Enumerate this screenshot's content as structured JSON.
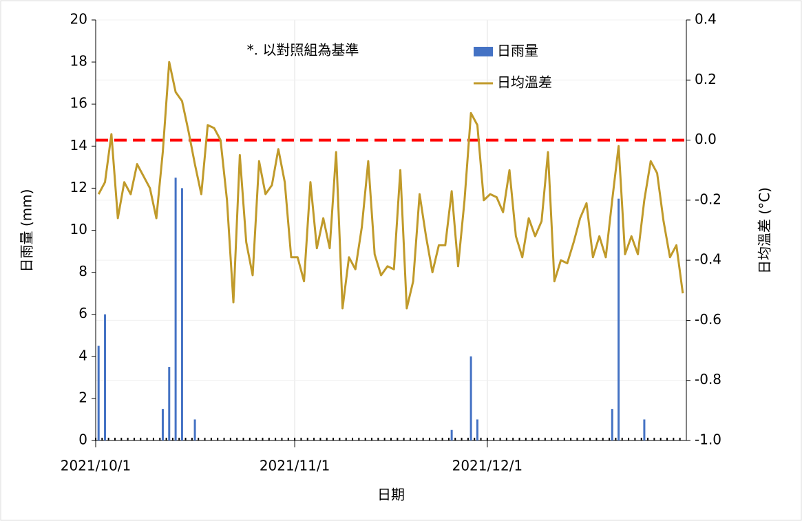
{
  "chart_data": {
    "type": "bar+line",
    "annotation": "*. 以對照組為基準",
    "x_label": "日期",
    "y_label": "日雨量 (mm)",
    "y2_label": "日均溫差 (°C)",
    "x": [
      "2021/10/1",
      "2021/10/2",
      "2021/10/3",
      "2021/10/4",
      "2021/10/5",
      "2021/10/6",
      "2021/10/7",
      "2021/10/8",
      "2021/10/9",
      "2021/10/10",
      "2021/10/11",
      "2021/10/12",
      "2021/10/13",
      "2021/10/14",
      "2021/10/15",
      "2021/10/16",
      "2021/10/17",
      "2021/10/18",
      "2021/10/19",
      "2021/10/20",
      "2021/10/21",
      "2021/10/22",
      "2021/10/23",
      "2021/10/24",
      "2021/10/25",
      "2021/10/26",
      "2021/10/27",
      "2021/10/28",
      "2021/10/29",
      "2021/10/30",
      "2021/10/31",
      "2021/11/1",
      "2021/11/2",
      "2021/11/3",
      "2021/11/4",
      "2021/11/5",
      "2021/11/6",
      "2021/11/7",
      "2021/11/8",
      "2021/11/9",
      "2021/11/10",
      "2021/11/11",
      "2021/11/12",
      "2021/11/13",
      "2021/11/14",
      "2021/11/15",
      "2021/11/16",
      "2021/11/17",
      "2021/11/18",
      "2021/11/19",
      "2021/11/20",
      "2021/11/21",
      "2021/11/22",
      "2021/11/23",
      "2021/11/24",
      "2021/11/25",
      "2021/11/26",
      "2021/11/27",
      "2021/11/28",
      "2021/11/29",
      "2021/11/30",
      "2021/12/1",
      "2021/12/2",
      "2021/12/3",
      "2021/12/4",
      "2021/12/5",
      "2021/12/6",
      "2021/12/7",
      "2021/12/8",
      "2021/12/9",
      "2021/12/10",
      "2021/12/11",
      "2021/12/12",
      "2021/12/13",
      "2021/12/14",
      "2021/12/15",
      "2021/12/16",
      "2021/12/17",
      "2021/12/18",
      "2021/12/19",
      "2021/12/20",
      "2021/12/21",
      "2021/12/22",
      "2021/12/23",
      "2021/12/24",
      "2021/12/25",
      "2021/12/26",
      "2021/12/27",
      "2021/12/28",
      "2021/12/29",
      "2021/12/30",
      "2021/12/31"
    ],
    "series": [
      {
        "name": "日雨量",
        "type": "bar",
        "axis": "y",
        "color": "#4472c4",
        "values": [
          4.5,
          6,
          0,
          0,
          0,
          0,
          0,
          0,
          0,
          0,
          1.5,
          3.5,
          12.5,
          12,
          0,
          1,
          0,
          0,
          0,
          0,
          0,
          0,
          0,
          0,
          0,
          0,
          0,
          0,
          0,
          0,
          0,
          0,
          0,
          0,
          0,
          0,
          0,
          0,
          0,
          0,
          0,
          0,
          0,
          0,
          0,
          0,
          0,
          0,
          0,
          0,
          0,
          0,
          0,
          0,
          0,
          0.5,
          0,
          0,
          4,
          1,
          0,
          0,
          0,
          0,
          0,
          0,
          0,
          0,
          0,
          0,
          0,
          0,
          0,
          0,
          0,
          0,
          0,
          0,
          0,
          0,
          1.5,
          11.5,
          0,
          0,
          0,
          1,
          0,
          0,
          0,
          0,
          0,
          0
        ]
      },
      {
        "name": "日均溫差",
        "type": "line",
        "axis": "y2",
        "color": "#c09a2a",
        "values": [
          -0.18,
          -0.14,
          0.02,
          -0.26,
          -0.14,
          -0.18,
          -0.08,
          -0.12,
          -0.16,
          -0.26,
          -0.04,
          0.26,
          0.16,
          0.13,
          0.03,
          -0.08,
          -0.18,
          0.05,
          0.04,
          0.0,
          -0.2,
          -0.54,
          -0.05,
          -0.34,
          -0.45,
          -0.07,
          -0.18,
          -0.15,
          -0.03,
          -0.14,
          -0.39,
          -0.39,
          -0.47,
          -0.14,
          -0.36,
          -0.26,
          -0.36,
          -0.04,
          -0.56,
          -0.39,
          -0.43,
          -0.29,
          -0.07,
          -0.38,
          -0.45,
          -0.42,
          -0.43,
          -0.1,
          -0.56,
          -0.47,
          -0.18,
          -0.32,
          -0.44,
          -0.35,
          -0.35,
          -0.17,
          -0.42,
          -0.2,
          0.09,
          0.05,
          -0.2,
          -0.18,
          -0.19,
          -0.24,
          -0.1,
          -0.32,
          -0.39,
          -0.26,
          -0.32,
          -0.27,
          -0.04,
          -0.47,
          -0.4,
          -0.41,
          -0.34,
          -0.26,
          -0.21,
          -0.39,
          -0.32,
          -0.39,
          -0.2,
          -0.02,
          -0.38,
          -0.32,
          -0.38,
          -0.2,
          -0.07,
          -0.11,
          -0.27,
          -0.39,
          -0.35,
          -0.51
        ]
      }
    ],
    "reference_line": {
      "value": 0,
      "axis": "y2",
      "color": "#ff0000"
    },
    "xlim": [
      "2021/10/1",
      "2022/1/1"
    ],
    "xticks": [
      "2021/10/1",
      "2021/11/1",
      "2021/12/1"
    ],
    "ylim": [
      0,
      20
    ],
    "yticks": [
      0,
      2,
      4,
      6,
      8,
      10,
      12,
      14,
      16,
      18,
      20
    ],
    "y2lim": [
      -1.0,
      0.4
    ],
    "y2ticks": [
      {
        "value": -1.0,
        "label": "-1.0"
      },
      {
        "value": -0.8,
        "label": "-0.8"
      },
      {
        "value": -0.6,
        "label": "-0.6"
      },
      {
        "value": -0.4,
        "label": "-0.4"
      },
      {
        "value": -0.2,
        "label": "-0.2"
      },
      {
        "value": 0.0,
        "label": "0.0"
      },
      {
        "value": 0.2,
        "label": "0.2"
      },
      {
        "value": 0.4,
        "label": "0.4"
      }
    ],
    "grid": true,
    "legend": "upper center"
  }
}
